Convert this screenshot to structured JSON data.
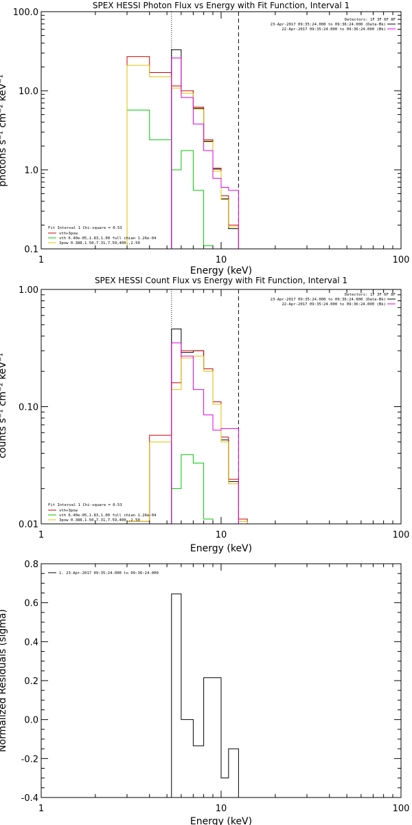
{
  "panels": [
    {
      "title": "SPEX HESSI Photon Flux vs Energy with Fit Function, Interval 1",
      "xlabel": "Energy (keV)",
      "ylabel": "photons s⁻¹ cm⁻² keV⁻¹",
      "detectors": "Detectors: 1F 3F 6F 8F",
      "time_labels": [
        "23-Apr-2017 09:35:24.000 to 09:36:24.000 (Data-Bk)",
        "22-Apr-2017 09:35:24.000 to 09:36:24.000 (Bk)"
      ],
      "fit_labels": [
        "Fit Interval 1   Chi-square = 0.53",
        "vth+3pow",
        "vth 6.40e-05,1.83,1.00  full chian 1.26e-04",
        "3pow 0.388,1.50,7.31,7.59,400.,2.50"
      ]
    },
    {
      "title": "SPEX HESSI Count Flux vs Energy with Fit Function, Interval 1",
      "xlabel": "Energy (keV)",
      "ylabel": "counts s⁻¹ cm⁻² keV⁻¹",
      "detectors": "Detectors: 1F 3F 6F 8F",
      "time_labels": [
        "23-Apr-2017 09:35:24.000 to 09:36:24.000 (Data-Bk)",
        "22-Apr-2017 09:35:24.000 to 09:36:24.000 (Bk)"
      ],
      "fit_labels": [
        "Fit Interval 1   Chi-square = 0.53",
        "vth+3pow",
        "vth 6.40e-05,1.83,1.00  full chian 1.26e-04",
        "3pow 0.388,1.50,7.31,7.59,400.,2.50"
      ]
    },
    {
      "title": "",
      "xlabel": "Energy (keV)",
      "ylabel": "Normalized Residuals (sigma)",
      "legend": "1. 23-Apr-2017 09:35:24.000 to 09:36:24.000"
    }
  ],
  "colors": {
    "data": "#000000",
    "total": "#c80000",
    "thermal": "#00c800",
    "power": "#e0c000",
    "background": "#e000e0"
  },
  "chart_data": [
    {
      "type": "line",
      "title": "SPEX HESSI Photon Flux vs Energy with Fit Function, Interval 1",
      "xlabel": "Energy (keV)",
      "ylabel": "photons s⁻¹ cm⁻² keV⁻¹",
      "xscale": "log",
      "yscale": "log",
      "xlim": [
        1,
        100
      ],
      "ylim": [
        0.1,
        100
      ],
      "xticks": [
        {
          "v": 1,
          "l": "1"
        },
        {
          "v": 10,
          "l": "10"
        },
        {
          "v": 100,
          "l": "100"
        }
      ],
      "yticks": [
        {
          "v": 0.1,
          "l": "0.1"
        },
        {
          "v": 1,
          "l": "1.0"
        },
        {
          "v": 10,
          "l": "10.0"
        },
        {
          "v": 100,
          "l": "100.0"
        }
      ],
      "vlines": [
        {
          "x": 5.3,
          "style": "dotted"
        },
        {
          "x": 12.5,
          "style": "dashed"
        }
      ],
      "edges": [
        3,
        4,
        5.3,
        6,
        7,
        8,
        9,
        10,
        11,
        12.5,
        14
      ],
      "series": [
        {
          "name": "Data-Bk",
          "color": "#000000",
          "values": [
            null,
            null,
            33,
            10,
            6,
            2.3,
            1.02,
            0.43,
            0.18,
            null
          ]
        },
        {
          "name": "vth+3pow",
          "color": "#c80000",
          "values": [
            27,
            17,
            11.5,
            10,
            6.2,
            2.4,
            1.05,
            0.47,
            0.2,
            null
          ]
        },
        {
          "name": "vth",
          "color": "#00c800",
          "values": [
            5.7,
            2.4,
            1.0,
            1.75,
            0.55,
            0.11,
            null,
            null,
            null,
            null
          ]
        },
        {
          "name": "3pow",
          "color": "#e0c000",
          "values": [
            21,
            15,
            10.8,
            9.3,
            5.8,
            2.25,
            0.96,
            0.42,
            0.19,
            null
          ]
        },
        {
          "name": "Bk",
          "color": "#e000e0",
          "values": [
            null,
            null,
            26,
            8.2,
            3.8,
            1.75,
            0.78,
            0.6,
            0.55,
            null
          ]
        }
      ]
    },
    {
      "type": "line",
      "title": "SPEX HESSI Count Flux vs Energy with Fit Function, Interval 1",
      "xlabel": "Energy (keV)",
      "ylabel": "counts s⁻¹ cm⁻² keV⁻¹",
      "xscale": "log",
      "yscale": "log",
      "xlim": [
        1,
        100
      ],
      "ylim": [
        0.01,
        1
      ],
      "xticks": [
        {
          "v": 1,
          "l": "1"
        },
        {
          "v": 10,
          "l": "10"
        },
        {
          "v": 100,
          "l": "100"
        }
      ],
      "yticks": [
        {
          "v": 0.01,
          "l": "0.01"
        },
        {
          "v": 0.1,
          "l": "0.10"
        },
        {
          "v": 1,
          "l": "1.00"
        }
      ],
      "vlines": [
        {
          "x": 5.3,
          "style": "dotted"
        },
        {
          "x": 12.5,
          "style": "dashed"
        }
      ],
      "edges": [
        3,
        4,
        5.3,
        6,
        7,
        8,
        9,
        10,
        11,
        12.5,
        14
      ],
      "series": [
        {
          "name": "Data-Bk",
          "color": "#000000",
          "values": [
            null,
            null,
            0.46,
            0.29,
            0.3,
            0.21,
            0.11,
            0.052,
            0.023,
            null
          ]
        },
        {
          "name": "vth+3pow",
          "color": "#c80000",
          "values": [
            0.0105,
            0.057,
            0.16,
            0.3,
            0.3,
            0.21,
            0.11,
            0.055,
            0.024,
            0.011
          ]
        },
        {
          "name": "vth",
          "color": "#00c800",
          "values": [
            null,
            null,
            0.02,
            0.039,
            0.033,
            0.011,
            null,
            null,
            null,
            null
          ]
        },
        {
          "name": "3pow",
          "color": "#e0c000",
          "values": [
            0.0105,
            0.05,
            0.14,
            0.26,
            0.27,
            0.2,
            0.105,
            0.05,
            0.022,
            0.0105
          ]
        },
        {
          "name": "Bk",
          "color": "#e000e0",
          "values": [
            null,
            null,
            0.35,
            0.27,
            0.14,
            0.085,
            0.063,
            0.065,
            0.065,
            null
          ]
        }
      ]
    },
    {
      "type": "line",
      "title": "",
      "xlabel": "Energy (keV)",
      "ylabel": "Normalized Residuals (sigma)",
      "xscale": "log",
      "yscale": "linear",
      "xlim": [
        1,
        100
      ],
      "ylim": [
        -0.4,
        0.8
      ],
      "xticks": [
        {
          "v": 1,
          "l": "1"
        },
        {
          "v": 10,
          "l": "10"
        },
        {
          "v": 100,
          "l": "100"
        }
      ],
      "yticks": [
        {
          "v": -0.4,
          "l": "-0.4"
        },
        {
          "v": -0.2,
          "l": "-0.2"
        },
        {
          "v": 0,
          "l": "0.0"
        },
        {
          "v": 0.2,
          "l": "0.2"
        },
        {
          "v": 0.4,
          "l": "0.4"
        },
        {
          "v": 0.6,
          "l": "0.6"
        },
        {
          "v": 0.8,
          "l": "0.8"
        }
      ],
      "vlines": [],
      "edges": [
        5.3,
        6,
        7,
        8,
        9,
        10,
        11,
        12.5
      ],
      "series": [
        {
          "name": "1. 23-Apr-2017 09:35:24.000 to 09:36:24.000",
          "color": "#000000",
          "values": [
            0.645,
            0.0,
            -0.135,
            0.215,
            0.215,
            -0.3,
            -0.15
          ]
        }
      ]
    }
  ]
}
